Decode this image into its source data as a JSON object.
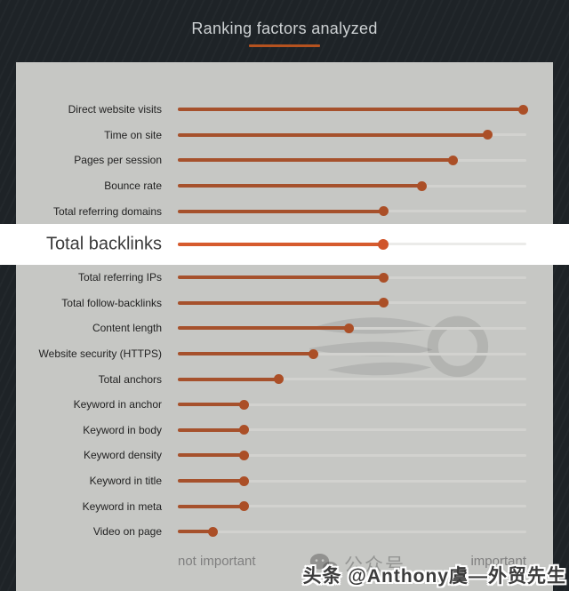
{
  "header": {
    "title": "Ranking factors analyzed",
    "underline_color": "#b5521f"
  },
  "chart_data": {
    "type": "bar",
    "subtype": "lollipop-dot-plot",
    "orientation": "horizontal",
    "title": "Ranking factors analyzed",
    "xlim": [
      0,
      1
    ],
    "grid": false,
    "x_axis_labels": {
      "left": "not important",
      "right": "important"
    },
    "highlighted_category": "Total backlinks",
    "categories": [
      "Direct website visits",
      "Time on site",
      "Pages per session",
      "Bounce rate",
      "Total referring domains",
      "Total backlinks",
      "Total referring IPs",
      "Total follow-backlinks",
      "Content length",
      "Website security (HTTPS)",
      "Total anchors",
      "Keyword in anchor",
      "Keyword in body",
      "Keyword density",
      "Keyword in title",
      "Keyword in meta",
      "Video on page"
    ],
    "values": [
      0.99,
      0.89,
      0.79,
      0.7,
      0.59,
      0.59,
      0.59,
      0.59,
      0.49,
      0.39,
      0.29,
      0.19,
      0.19,
      0.19,
      0.19,
      0.19,
      0.1
    ],
    "colors": {
      "background": "#1e2327",
      "panel_bg": "#c6c7c4",
      "line": "#a6512c",
      "dot": "#ab4f27",
      "track": "#d2d2cf",
      "highlight_bg": "#ffffff",
      "highlight_line": "#d65b2e",
      "highlight_dot": "#d0542a",
      "title_text": "#cdd1d3",
      "accent_underline": "#b5521f"
    }
  },
  "watermarks": {
    "semrush_logo_icon": "semrush-swoosh-logo",
    "wechat_icon": "wechat-chat-bubbles-icon",
    "wechat_text": "公众号",
    "toutiao_text": "头条 @Anthony虞—外贸先生"
  }
}
